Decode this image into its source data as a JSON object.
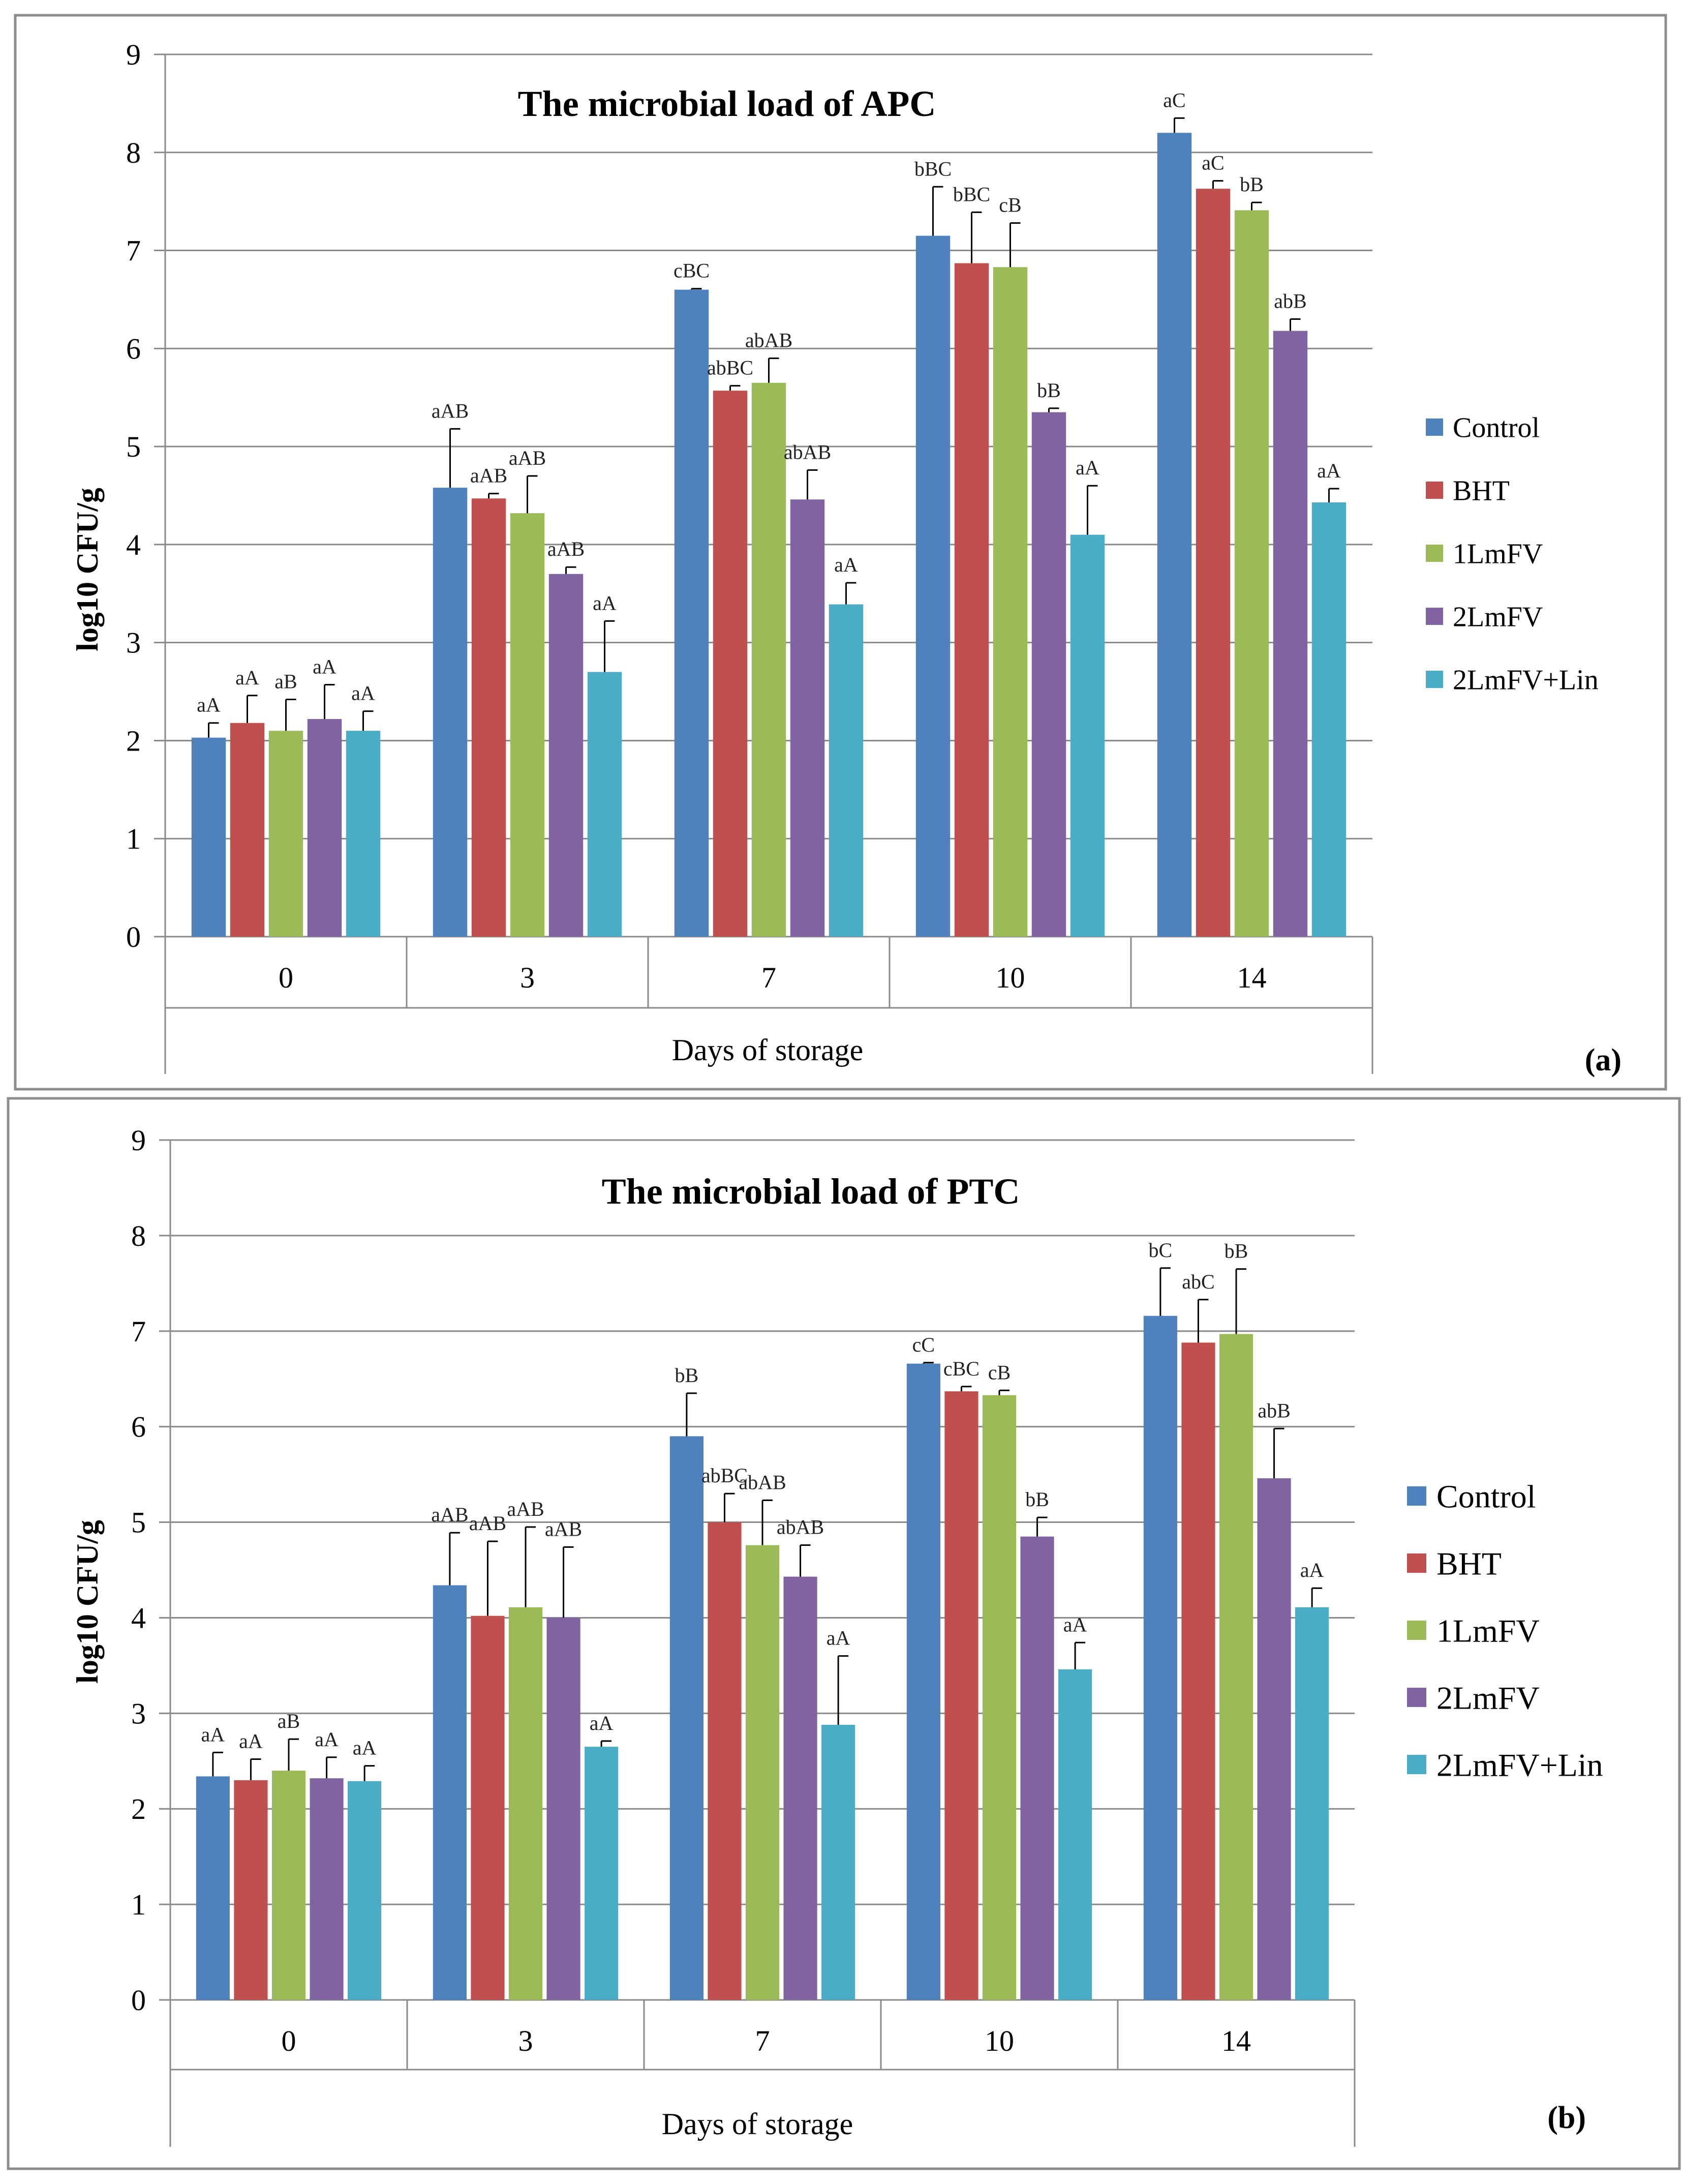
{
  "chart_data": [
    {
      "type": "bar",
      "panel_label": "(a)",
      "title": "The microbial load of APC",
      "xlabel": "Days of storage",
      "ylabel": "log10 CFU/g",
      "ylim": [
        0,
        9
      ],
      "yticks": [
        "0",
        "1",
        "2",
        "3",
        "4",
        "5",
        "6",
        "7",
        "8",
        "9"
      ],
      "grid": true,
      "legend_position": "right",
      "categories": [
        "0",
        "3",
        "7",
        "10",
        "14"
      ],
      "series": [
        {
          "name": "Control",
          "color": "#4f81bd",
          "values": [
            2.03,
            4.58,
            6.6,
            7.15,
            8.2
          ],
          "errors": [
            0.15,
            0.6,
            0.01,
            0.5,
            0.15
          ],
          "labels": [
            "aA",
            "aAB",
            "cBC",
            "bBC",
            "aC"
          ]
        },
        {
          "name": "BHT",
          "color": "#c0504d",
          "values": [
            2.18,
            4.47,
            5.57,
            6.87,
            7.63
          ],
          "errors": [
            0.28,
            0.05,
            0.05,
            0.52,
            0.08
          ],
          "labels": [
            "aA",
            "aAB",
            "abBC",
            "bBC",
            "aC"
          ]
        },
        {
          "name": "1LmFV",
          "color": "#9bbb59",
          "values": [
            2.1,
            4.32,
            5.65,
            6.83,
            7.41
          ],
          "errors": [
            0.32,
            0.38,
            0.25,
            0.45,
            0.08
          ],
          "labels": [
            "aB",
            "aAB",
            "abAB",
            "cB",
            "bB"
          ]
        },
        {
          "name": "2LmFV",
          "color": "#8064a2",
          "values": [
            2.22,
            3.7,
            4.46,
            5.35,
            6.18
          ],
          "errors": [
            0.35,
            0.07,
            0.3,
            0.04,
            0.12
          ],
          "labels": [
            "aA",
            "aAB",
            "abAB",
            "bB",
            "abB"
          ]
        },
        {
          "name": "2LmFV+Lin",
          "color": "#4bacc6",
          "values": [
            2.1,
            2.7,
            3.39,
            4.1,
            4.43
          ],
          "errors": [
            0.2,
            0.52,
            0.22,
            0.5,
            0.14
          ],
          "labels": [
            "aA",
            "aA",
            "aA",
            "aA",
            "aA"
          ]
        }
      ]
    },
    {
      "type": "bar",
      "panel_label": "(b)",
      "title": "The microbial load of PTC",
      "xlabel": "Days of storage",
      "ylabel": "log10 CFU/g",
      "ylim": [
        0,
        9
      ],
      "yticks": [
        "0",
        "1",
        "2",
        "3",
        "4",
        "5",
        "6",
        "7",
        "8",
        "9"
      ],
      "grid": true,
      "legend_position": "right",
      "categories": [
        "0",
        "3",
        "7",
        "10",
        "14"
      ],
      "series": [
        {
          "name": "Control",
          "color": "#4f81bd",
          "values": [
            2.34,
            4.34,
            5.9,
            6.66,
            7.16
          ],
          "errors": [
            0.25,
            0.55,
            0.45,
            0.01,
            0.5
          ],
          "labels": [
            "aA",
            "aAB",
            "bB",
            "cC",
            "bC"
          ]
        },
        {
          "name": "BHT",
          "color": "#c0504d",
          "values": [
            2.3,
            4.02,
            5.0,
            6.37,
            6.88
          ],
          "errors": [
            0.22,
            0.78,
            0.3,
            0.05,
            0.45
          ],
          "labels": [
            "aA",
            "aAB",
            "abBC",
            "cBC",
            "abC"
          ]
        },
        {
          "name": "1LmFV",
          "color": "#9bbb59",
          "values": [
            2.4,
            4.11,
            4.76,
            6.33,
            6.97
          ],
          "errors": [
            0.33,
            0.84,
            0.47,
            0.05,
            0.68
          ],
          "labels": [
            "aB",
            "aAB",
            "abAB",
            "cB",
            "bB"
          ]
        },
        {
          "name": "2LmFV",
          "color": "#8064a2",
          "values": [
            2.32,
            4.0,
            4.43,
            4.85,
            5.46
          ],
          "errors": [
            0.22,
            0.74,
            0.33,
            0.2,
            0.52
          ],
          "labels": [
            "aA",
            "aAB",
            "abAB",
            "bB",
            "abB"
          ]
        },
        {
          "name": "2LmFV+Lin",
          "color": "#4bacc6",
          "values": [
            2.29,
            2.65,
            2.88,
            3.46,
            4.11
          ],
          "errors": [
            0.16,
            0.06,
            0.72,
            0.28,
            0.2
          ],
          "labels": [
            "aA",
            "aA",
            "aA",
            "aA",
            "aA"
          ]
        }
      ]
    }
  ]
}
